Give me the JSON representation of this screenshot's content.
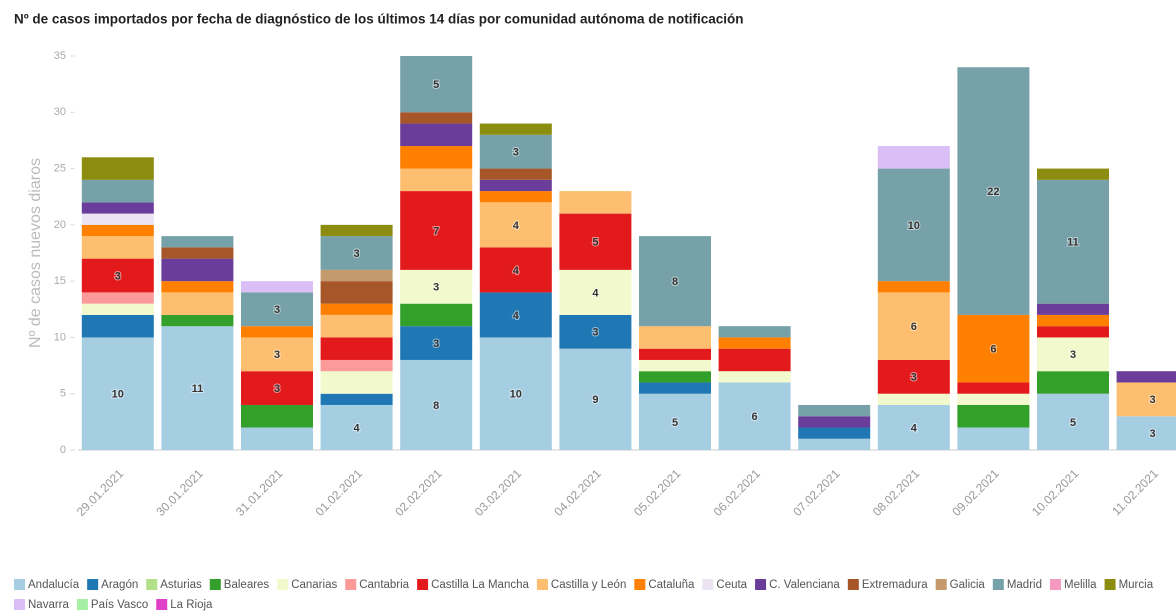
{
  "chart_data": {
    "type": "stacked_bar",
    "title": "Nº de casos importados por fecha de diagnóstico de los últimos 14 días por comunidad autónoma de notificación",
    "y_label": "Nº de casos nuevos diaros",
    "categories": [
      "29.01.2021",
      "30.01.2021",
      "31.01.2021",
      "01.02.2021",
      "02.02.2021",
      "03.02.2021",
      "04.02.2021",
      "05.02.2021",
      "06.02.2021",
      "07.02.2021",
      "08.02.2021",
      "09.02.2021",
      "10.02.2021",
      "11.02.2021"
    ],
    "ylim": [
      0,
      35
    ],
    "yticks": [
      0,
      5,
      10,
      15,
      20,
      25,
      30,
      35
    ],
    "series": [
      {
        "name": "Andalucía",
        "color": "#a6cee3",
        "values": [
          10,
          11,
          2,
          4,
          8,
          10,
          9,
          5,
          6,
          1,
          4,
          2,
          5,
          3
        ]
      },
      {
        "name": "Aragón",
        "color": "#1f78b4",
        "values": [
          2,
          0,
          0,
          1,
          3,
          4,
          3,
          1,
          0,
          1,
          0,
          0,
          0,
          0
        ]
      },
      {
        "name": "Asturias",
        "color": "#b2df8a",
        "values": [
          0,
          0,
          0,
          0,
          0,
          0,
          0,
          0,
          0,
          0,
          0,
          0,
          0,
          0
        ]
      },
      {
        "name": "Baleares",
        "color": "#33a02c",
        "values": [
          0,
          1,
          2,
          0,
          2,
          0,
          0,
          1,
          0,
          0,
          0,
          2,
          2,
          0
        ]
      },
      {
        "name": "Canarias",
        "color": "#f2f9cc",
        "values": [
          1,
          0,
          0,
          2,
          3,
          0,
          4,
          1,
          1,
          0,
          1,
          1,
          3,
          0
        ]
      },
      {
        "name": "Cantabria",
        "color": "#fb9a99",
        "values": [
          1,
          0,
          0,
          1,
          0,
          0,
          0,
          0,
          0,
          0,
          0,
          0,
          0,
          0
        ]
      },
      {
        "name": "Castilla La Mancha",
        "color": "#e31a1c",
        "values": [
          3,
          0,
          3,
          2,
          7,
          4,
          5,
          1,
          2,
          0,
          3,
          1,
          1,
          0
        ]
      },
      {
        "name": "Castilla y León",
        "color": "#fdbf6f",
        "values": [
          2,
          2,
          3,
          2,
          2,
          4,
          2,
          2,
          0,
          0,
          6,
          0,
          0,
          3
        ]
      },
      {
        "name": "Cataluña",
        "color": "#ff7f00",
        "values": [
          1,
          1,
          1,
          1,
          2,
          1,
          0,
          0,
          1,
          0,
          1,
          6,
          1,
          0
        ]
      },
      {
        "name": "Ceuta",
        "color": "#ece4f2",
        "values": [
          1,
          0,
          0,
          0,
          0,
          0,
          0,
          0,
          0,
          0,
          0,
          0,
          0,
          0
        ]
      },
      {
        "name": "C. Valenciana",
        "color": "#6a3d9a",
        "values": [
          1,
          2,
          0,
          0,
          2,
          1,
          0,
          0,
          0,
          1,
          0,
          0,
          1,
          1
        ]
      },
      {
        "name": "Extremadura",
        "color": "#a65628",
        "values": [
          0,
          1,
          0,
          2,
          1,
          1,
          0,
          0,
          0,
          0,
          0,
          0,
          0,
          0
        ]
      },
      {
        "name": "Galicia",
        "color": "#c49a6c",
        "values": [
          0,
          0,
          0,
          1,
          0,
          0,
          0,
          0,
          0,
          0,
          0,
          0,
          0,
          0
        ]
      },
      {
        "name": "Madrid",
        "color": "#76a1a8",
        "values": [
          2,
          1,
          3,
          3,
          5,
          3,
          0,
          8,
          1,
          1,
          10,
          22,
          11,
          0
        ]
      },
      {
        "name": "Melilla",
        "color": "#f49ac1",
        "values": [
          0,
          0,
          0,
          0,
          0,
          0,
          0,
          0,
          0,
          0,
          0,
          0,
          0,
          0
        ]
      },
      {
        "name": "Murcia",
        "color": "#8c8c10",
        "values": [
          2,
          0,
          0,
          1,
          0,
          1,
          0,
          0,
          0,
          0,
          0,
          0,
          1,
          0
        ]
      },
      {
        "name": "Navarra",
        "color": "#d9bff5",
        "values": [
          0,
          0,
          1,
          0,
          0,
          0,
          0,
          0,
          0,
          0,
          2,
          0,
          0,
          0
        ]
      },
      {
        "name": "País Vasco",
        "color": "#a6f0a6",
        "values": [
          0,
          0,
          0,
          0,
          0,
          0,
          0,
          0,
          0,
          0,
          0,
          0,
          0,
          0
        ]
      },
      {
        "name": "La Rioja",
        "color": "#e040c8",
        "values": [
          0,
          0,
          0,
          0,
          0,
          0,
          0,
          0,
          0,
          0,
          0,
          0,
          0,
          0
        ]
      }
    ]
  }
}
